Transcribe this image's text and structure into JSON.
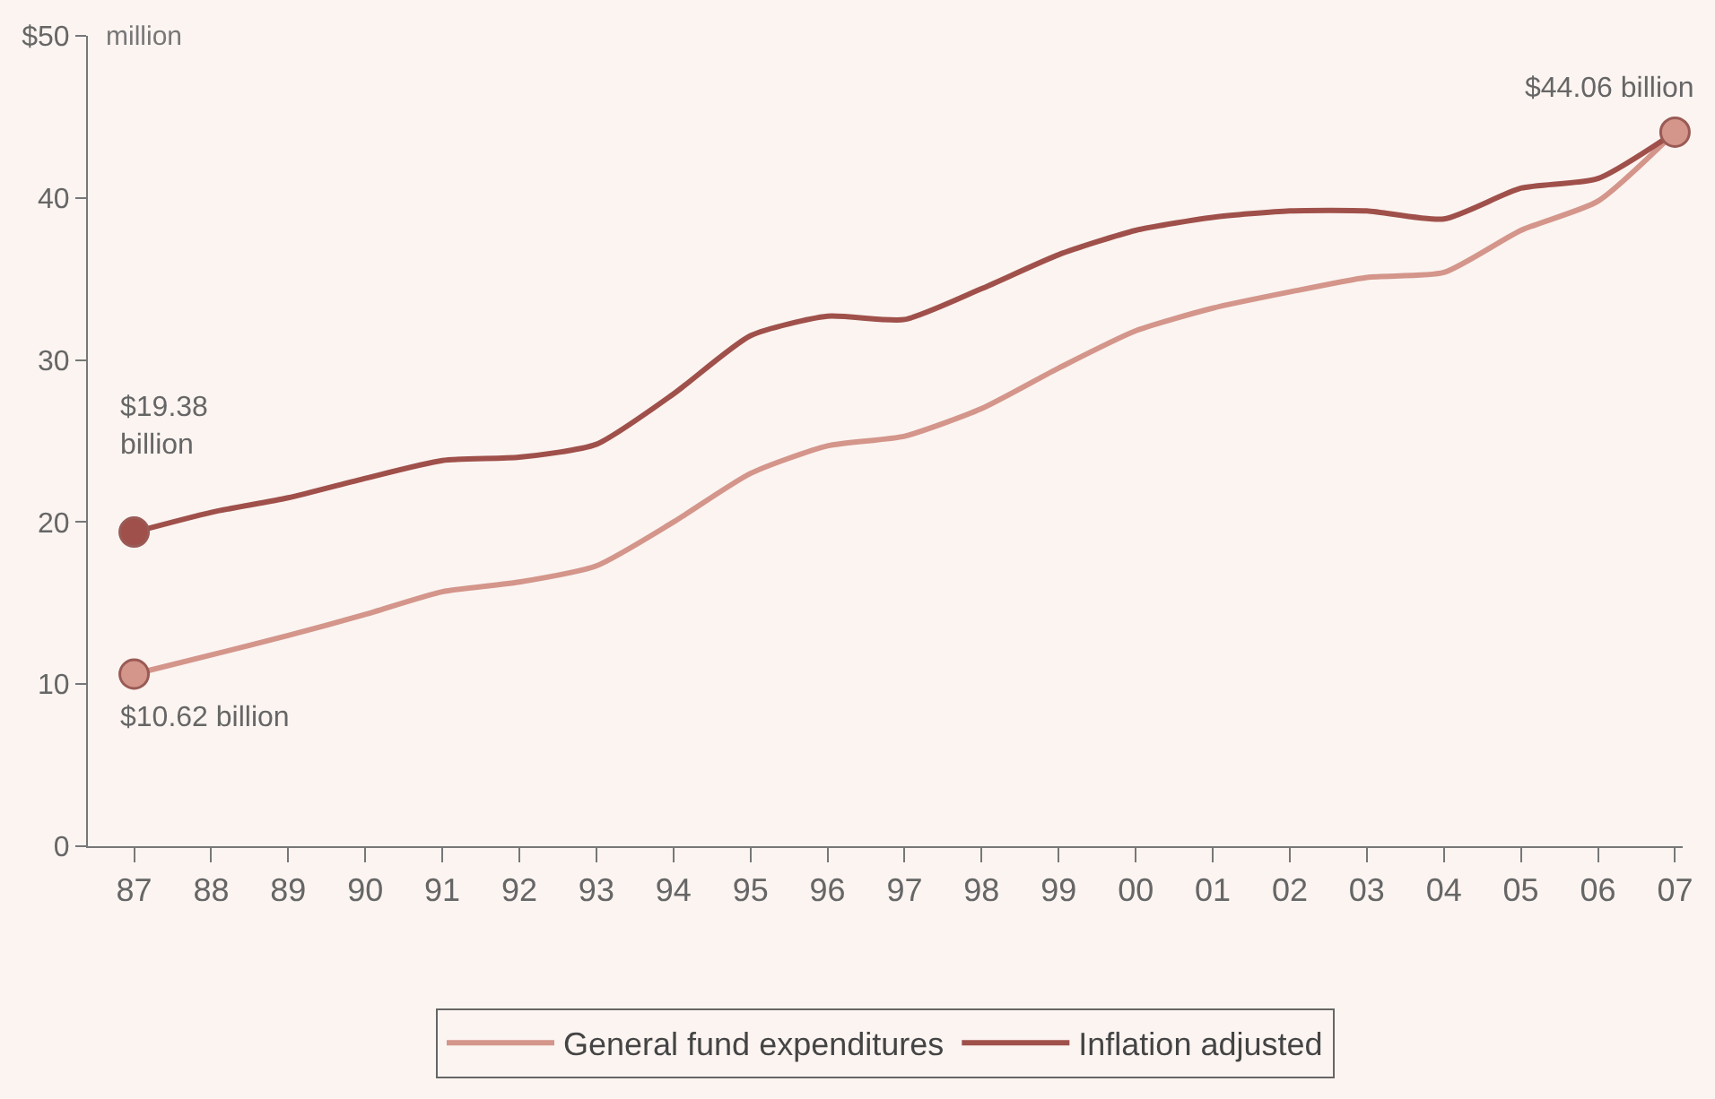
{
  "chart_data": {
    "type": "line",
    "ylabel": "million",
    "categories": [
      "87",
      "88",
      "89",
      "90",
      "91",
      "92",
      "93",
      "94",
      "95",
      "96",
      "97",
      "98",
      "99",
      "00",
      "01",
      "02",
      "03",
      "04",
      "05",
      "06",
      "07"
    ],
    "series": [
      {
        "name": "General fund expenditures",
        "color": "#d4958a",
        "values": [
          10.62,
          11.8,
          13.0,
          14.3,
          15.7,
          16.3,
          17.3,
          20.0,
          23.0,
          24.7,
          25.3,
          27.0,
          29.5,
          31.8,
          33.2,
          34.2,
          35.1,
          35.4,
          38.0,
          39.8,
          44.06
        ]
      },
      {
        "name": "Inflation adjusted",
        "color": "#a0504a",
        "values": [
          19.38,
          20.6,
          21.5,
          22.7,
          23.8,
          24.0,
          24.8,
          27.9,
          31.5,
          32.7,
          32.5,
          34.4,
          36.5,
          38.0,
          38.8,
          39.2,
          39.2,
          38.7,
          40.6,
          41.2,
          44.06
        ]
      },
      {
        "type": "scatter",
        "marker": "circle",
        "color": "#a0504a",
        "x": [
          "87"
        ],
        "values": [
          19.38
        ]
      },
      {
        "type": "scatter",
        "marker": "circle",
        "color": "#d4958a",
        "x": [
          "87",
          "07"
        ],
        "values": [
          10.62,
          44.06
        ]
      }
    ],
    "annotations": [
      {
        "text": "$19.38 billion",
        "x": "87",
        "y": 19.38
      },
      {
        "text": "$10.62 billion",
        "x": "87",
        "y": 10.62
      },
      {
        "text": "$44.06 billion",
        "x": "07",
        "y": 44.06
      }
    ],
    "ylim": [
      0,
      50
    ],
    "yticks": [
      0,
      10,
      20,
      30,
      40,
      {
        "value": 50,
        "label": "$50"
      }
    ],
    "grid": false,
    "legend": "bottom",
    "marker": "none",
    "line_style": "solid"
  }
}
